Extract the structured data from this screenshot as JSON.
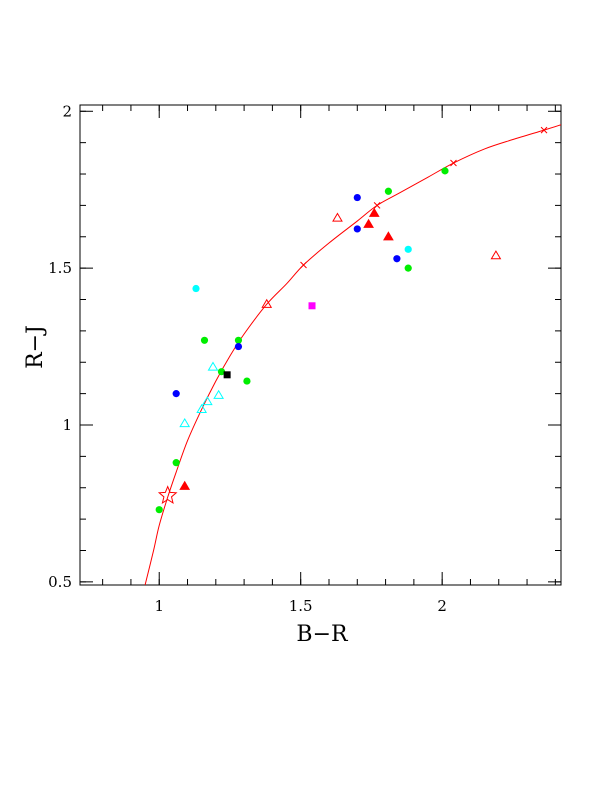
{
  "chart_data": {
    "type": "scatter",
    "xlabel": "B−R",
    "ylabel": "R−J",
    "xlim": [
      0.72,
      2.42
    ],
    "ylim": [
      0.49,
      2.02
    ],
    "x_ticks": [
      {
        "value": 1,
        "label": "1"
      },
      {
        "value": 1.5,
        "label": "1.5"
      },
      {
        "value": 2,
        "label": "2"
      }
    ],
    "y_ticks": [
      {
        "value": 0.5,
        "label": "0.5"
      },
      {
        "value": 1,
        "label": "1"
      },
      {
        "value": 1.5,
        "label": "1.5"
      },
      {
        "value": 2,
        "label": "2"
      }
    ],
    "x_minor_step": 0.1,
    "y_minor_step": 0.1,
    "grid": false,
    "legend": "none",
    "fit_curve": {
      "color": "#ff0000",
      "points": [
        [
          0.95,
          0.49
        ],
        [
          0.98,
          0.6
        ],
        [
          1.0,
          0.68
        ],
        [
          1.03,
          0.77
        ],
        [
          1.06,
          0.85
        ],
        [
          1.1,
          0.95
        ],
        [
          1.15,
          1.05
        ],
        [
          1.2,
          1.14
        ],
        [
          1.25,
          1.22
        ],
        [
          1.3,
          1.29
        ],
        [
          1.38,
          1.385
        ],
        [
          1.45,
          1.45
        ],
        [
          1.51,
          1.51
        ],
        [
          1.6,
          1.58
        ],
        [
          1.7,
          1.65
        ],
        [
          1.77,
          1.7
        ],
        [
          1.85,
          1.74
        ],
        [
          1.95,
          1.79
        ],
        [
          2.04,
          1.835
        ],
        [
          2.15,
          1.88
        ],
        [
          2.25,
          1.91
        ],
        [
          2.36,
          1.94
        ],
        [
          2.42,
          1.957
        ]
      ],
      "cross_markers": [
        [
          1.51,
          1.51
        ],
        [
          1.77,
          1.7
        ],
        [
          2.04,
          1.835
        ],
        [
          2.36,
          1.94
        ]
      ]
    },
    "series": [
      {
        "marker": "circle",
        "color": "#00ee00",
        "points": [
          [
            1.0,
            0.73
          ],
          [
            1.06,
            0.88
          ],
          [
            1.16,
            1.27
          ],
          [
            1.22,
            1.17
          ],
          [
            1.28,
            1.27
          ],
          [
            1.31,
            1.14
          ],
          [
            1.81,
            1.745
          ],
          [
            2.01,
            1.81
          ],
          [
            1.88,
            1.5
          ]
        ]
      },
      {
        "marker": "circle",
        "color": "#0000ff",
        "points": [
          [
            1.06,
            1.1
          ],
          [
            1.28,
            1.25
          ],
          [
            1.7,
            1.725
          ],
          [
            1.7,
            1.625
          ],
          [
            1.84,
            1.53
          ]
        ]
      },
      {
        "marker": "circle",
        "color": "#00ffff",
        "points": [
          [
            1.13,
            1.435
          ],
          [
            1.88,
            1.56
          ]
        ]
      },
      {
        "marker": "triangle-open",
        "color": "#00ffff",
        "points": [
          [
            1.09,
            1.005
          ],
          [
            1.15,
            1.05
          ],
          [
            1.17,
            1.075
          ],
          [
            1.19,
            1.185
          ],
          [
            1.21,
            1.095
          ]
        ]
      },
      {
        "marker": "triangle-filled",
        "color": "#ff0000",
        "points": [
          [
            1.09,
            0.805
          ],
          [
            1.74,
            1.64
          ],
          [
            1.76,
            1.675
          ],
          [
            1.81,
            1.6
          ]
        ]
      },
      {
        "marker": "triangle-open",
        "color": "#ff0000",
        "points": [
          [
            1.38,
            1.385
          ],
          [
            1.63,
            1.66
          ],
          [
            2.19,
            1.54
          ]
        ]
      },
      {
        "marker": "square",
        "color": "#ff00ff",
        "points": [
          [
            1.54,
            1.38
          ]
        ]
      },
      {
        "marker": "square",
        "color": "#000000",
        "points": [
          [
            1.24,
            1.16
          ]
        ]
      },
      {
        "marker": "star-open",
        "color": "#ff0000",
        "points": [
          [
            1.03,
            0.775
          ]
        ]
      }
    ]
  }
}
